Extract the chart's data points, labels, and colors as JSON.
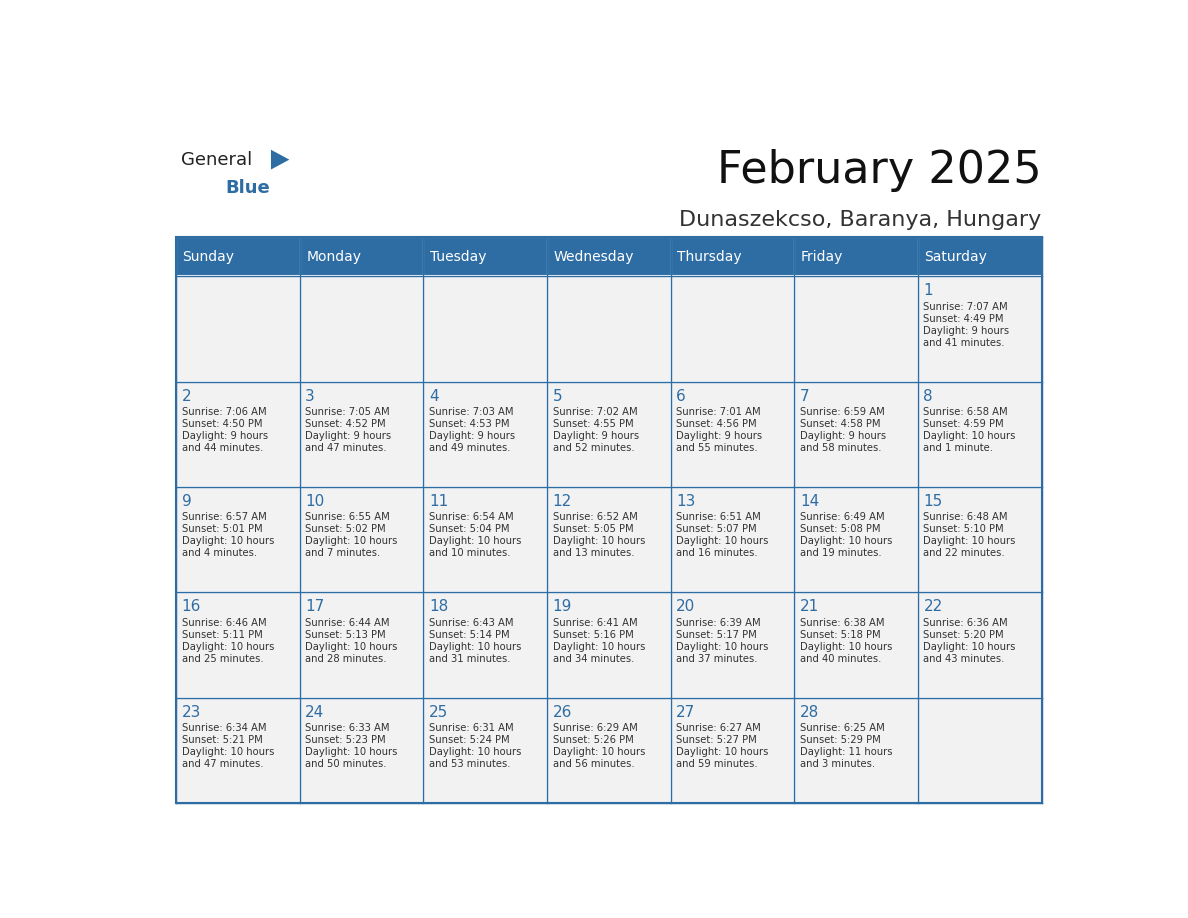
{
  "title": "February 2025",
  "subtitle": "Dunaszekcso, Baranya, Hungary",
  "header_bg": "#2E6DA4",
  "header_text_color": "#FFFFFF",
  "cell_bg_light": "#F2F2F2",
  "day_number_color": "#2E6DA4",
  "info_text_color": "#333333",
  "days_of_week": [
    "Sunday",
    "Monday",
    "Tuesday",
    "Wednesday",
    "Thursday",
    "Friday",
    "Saturday"
  ],
  "weeks": [
    [
      {
        "day": "",
        "info": ""
      },
      {
        "day": "",
        "info": ""
      },
      {
        "day": "",
        "info": ""
      },
      {
        "day": "",
        "info": ""
      },
      {
        "day": "",
        "info": ""
      },
      {
        "day": "",
        "info": ""
      },
      {
        "day": "1",
        "info": "Sunrise: 7:07 AM\nSunset: 4:49 PM\nDaylight: 9 hours\nand 41 minutes."
      }
    ],
    [
      {
        "day": "2",
        "info": "Sunrise: 7:06 AM\nSunset: 4:50 PM\nDaylight: 9 hours\nand 44 minutes."
      },
      {
        "day": "3",
        "info": "Sunrise: 7:05 AM\nSunset: 4:52 PM\nDaylight: 9 hours\nand 47 minutes."
      },
      {
        "day": "4",
        "info": "Sunrise: 7:03 AM\nSunset: 4:53 PM\nDaylight: 9 hours\nand 49 minutes."
      },
      {
        "day": "5",
        "info": "Sunrise: 7:02 AM\nSunset: 4:55 PM\nDaylight: 9 hours\nand 52 minutes."
      },
      {
        "day": "6",
        "info": "Sunrise: 7:01 AM\nSunset: 4:56 PM\nDaylight: 9 hours\nand 55 minutes."
      },
      {
        "day": "7",
        "info": "Sunrise: 6:59 AM\nSunset: 4:58 PM\nDaylight: 9 hours\nand 58 minutes."
      },
      {
        "day": "8",
        "info": "Sunrise: 6:58 AM\nSunset: 4:59 PM\nDaylight: 10 hours\nand 1 minute."
      }
    ],
    [
      {
        "day": "9",
        "info": "Sunrise: 6:57 AM\nSunset: 5:01 PM\nDaylight: 10 hours\nand 4 minutes."
      },
      {
        "day": "10",
        "info": "Sunrise: 6:55 AM\nSunset: 5:02 PM\nDaylight: 10 hours\nand 7 minutes."
      },
      {
        "day": "11",
        "info": "Sunrise: 6:54 AM\nSunset: 5:04 PM\nDaylight: 10 hours\nand 10 minutes."
      },
      {
        "day": "12",
        "info": "Sunrise: 6:52 AM\nSunset: 5:05 PM\nDaylight: 10 hours\nand 13 minutes."
      },
      {
        "day": "13",
        "info": "Sunrise: 6:51 AM\nSunset: 5:07 PM\nDaylight: 10 hours\nand 16 minutes."
      },
      {
        "day": "14",
        "info": "Sunrise: 6:49 AM\nSunset: 5:08 PM\nDaylight: 10 hours\nand 19 minutes."
      },
      {
        "day": "15",
        "info": "Sunrise: 6:48 AM\nSunset: 5:10 PM\nDaylight: 10 hours\nand 22 minutes."
      }
    ],
    [
      {
        "day": "16",
        "info": "Sunrise: 6:46 AM\nSunset: 5:11 PM\nDaylight: 10 hours\nand 25 minutes."
      },
      {
        "day": "17",
        "info": "Sunrise: 6:44 AM\nSunset: 5:13 PM\nDaylight: 10 hours\nand 28 minutes."
      },
      {
        "day": "18",
        "info": "Sunrise: 6:43 AM\nSunset: 5:14 PM\nDaylight: 10 hours\nand 31 minutes."
      },
      {
        "day": "19",
        "info": "Sunrise: 6:41 AM\nSunset: 5:16 PM\nDaylight: 10 hours\nand 34 minutes."
      },
      {
        "day": "20",
        "info": "Sunrise: 6:39 AM\nSunset: 5:17 PM\nDaylight: 10 hours\nand 37 minutes."
      },
      {
        "day": "21",
        "info": "Sunrise: 6:38 AM\nSunset: 5:18 PM\nDaylight: 10 hours\nand 40 minutes."
      },
      {
        "day": "22",
        "info": "Sunrise: 6:36 AM\nSunset: 5:20 PM\nDaylight: 10 hours\nand 43 minutes."
      }
    ],
    [
      {
        "day": "23",
        "info": "Sunrise: 6:34 AM\nSunset: 5:21 PM\nDaylight: 10 hours\nand 47 minutes."
      },
      {
        "day": "24",
        "info": "Sunrise: 6:33 AM\nSunset: 5:23 PM\nDaylight: 10 hours\nand 50 minutes."
      },
      {
        "day": "25",
        "info": "Sunrise: 6:31 AM\nSunset: 5:24 PM\nDaylight: 10 hours\nand 53 minutes."
      },
      {
        "day": "26",
        "info": "Sunrise: 6:29 AM\nSunset: 5:26 PM\nDaylight: 10 hours\nand 56 minutes."
      },
      {
        "day": "27",
        "info": "Sunrise: 6:27 AM\nSunset: 5:27 PM\nDaylight: 10 hours\nand 59 minutes."
      },
      {
        "day": "28",
        "info": "Sunrise: 6:25 AM\nSunset: 5:29 PM\nDaylight: 11 hours\nand 3 minutes."
      },
      {
        "day": "",
        "info": ""
      }
    ]
  ],
  "logo_general_color": "#222222",
  "logo_blue_color": "#2E6DA4",
  "logo_triangle_color": "#2E6DA4"
}
